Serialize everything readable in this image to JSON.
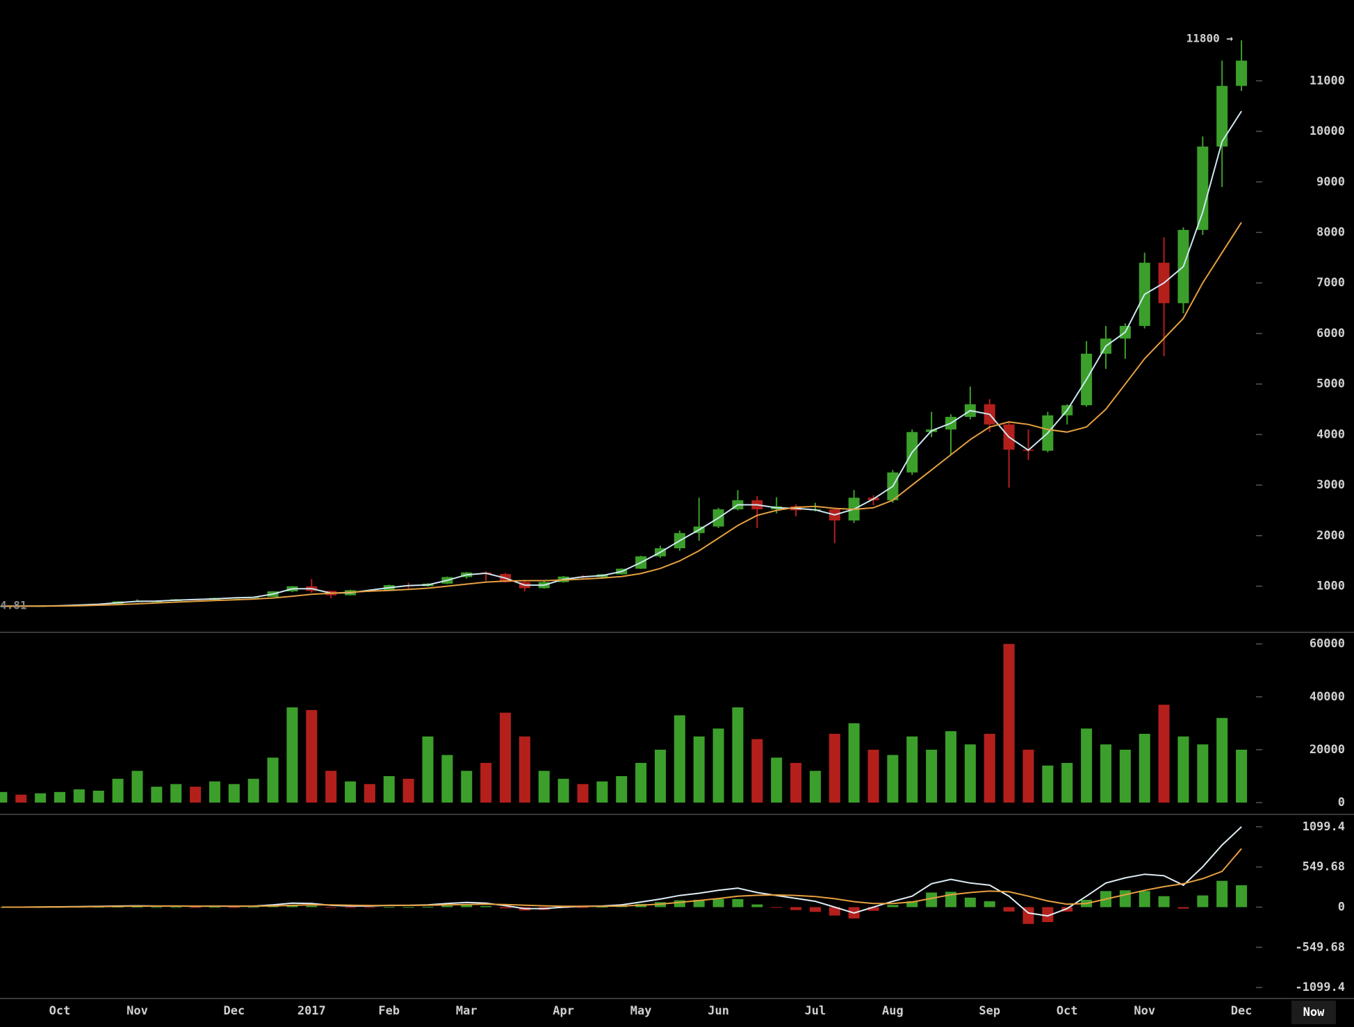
{
  "chart_data": [
    {
      "type": "candlestick",
      "categories": [
        null,
        null,
        null,
        "Oct",
        null,
        null,
        null,
        "Nov",
        null,
        null,
        null,
        null,
        "Dec",
        null,
        null,
        null,
        "2017",
        null,
        null,
        null,
        "Feb",
        null,
        null,
        null,
        "Mar",
        null,
        null,
        null,
        null,
        "Apr",
        null,
        null,
        null,
        "May",
        null,
        null,
        null,
        "Jun",
        null,
        null,
        null,
        null,
        "Jul",
        null,
        null,
        null,
        "Aug",
        null,
        null,
        null,
        null,
        "Sep",
        null,
        null,
        null,
        "Oct",
        null,
        null,
        null,
        "Nov",
        null,
        null,
        null,
        null,
        "Dec"
      ],
      "open": [
        607,
        609,
        602,
        610,
        617,
        638,
        647,
        698,
        703,
        705,
        740,
        731,
        766,
        772,
        788,
        897,
        998,
        905,
        820,
        920,
        918,
        1020,
        1000,
        1050,
        1180,
        1270,
        1240,
        1080,
        960,
        1080,
        1190,
        1180,
        1235,
        1345,
        1590,
        1750,
        2050,
        2180,
        2520,
        2700,
        2520,
        2580,
        2500,
        2520,
        2300,
        2750,
        2700,
        3250,
        4050,
        4100,
        4350,
        4600,
        4200,
        3700,
        3680,
        4380,
        4580,
        5600,
        5900,
        6150,
        7400,
        6600,
        8050,
        9700,
        10900
      ],
      "high": [
        612,
        611,
        612,
        620,
        642,
        650,
        700,
        740,
        723,
        745,
        745,
        770,
        778,
        790,
        900,
        1000,
        1140,
        910,
        930,
        925,
        1030,
        1070,
        1060,
        1190,
        1280,
        1290,
        1260,
        1100,
        1100,
        1200,
        1220,
        1240,
        1350,
        1600,
        1800,
        2100,
        2750,
        2550,
        2900,
        2780,
        2760,
        2620,
        2650,
        2540,
        2900,
        2800,
        3300,
        4100,
        4450,
        4400,
        4950,
        4700,
        4250,
        4100,
        4450,
        4600,
        5850,
        6150,
        6200,
        7600,
        7900,
        8100,
        9900,
        11400,
        11800
      ],
      "low": [
        600,
        595,
        600,
        605,
        615,
        625,
        645,
        690,
        700,
        700,
        725,
        728,
        755,
        766,
        786,
        880,
        870,
        760,
        815,
        880,
        915,
        950,
        990,
        1040,
        1150,
        1100,
        1070,
        900,
        950,
        1070,
        1140,
        1170,
        1230,
        1340,
        1560,
        1700,
        1900,
        2150,
        2500,
        2150,
        2440,
        2380,
        2480,
        1850,
        2250,
        2600,
        2650,
        3200,
        3950,
        3600,
        4300,
        4050,
        2950,
        3500,
        3650,
        4200,
        4550,
        5300,
        5500,
        6100,
        5550,
        6400,
        7950,
        8900,
        10800
      ],
      "close": [
        609,
        602,
        610,
        617,
        638,
        647,
        698,
        703,
        705,
        740,
        731,
        766,
        772,
        788,
        897,
        998,
        905,
        820,
        920,
        918,
        1020,
        1000,
        1050,
        1180,
        1270,
        1240,
        1080,
        960,
        1080,
        1190,
        1180,
        1235,
        1345,
        1590,
        1750,
        2050,
        2180,
        2520,
        2700,
        2520,
        2580,
        2500,
        2520,
        2300,
        2750,
        2700,
        3250,
        4050,
        4100,
        4350,
        4600,
        4200,
        3700,
        3680,
        4380,
        4580,
        5600,
        5900,
        6150,
        7400,
        6600,
        8050,
        9700,
        10900,
        11400
      ],
      "up_color": "#3c9f2b",
      "down_color": "#b3201c",
      "series": [
        {
          "color": "#cfe8f2",
          "values": [
            605,
            606,
            606,
            613,
            627,
            642,
            672,
            700,
            704,
            722,
            735,
            748,
            769,
            780,
            842,
            947,
            951,
            862,
            870,
            919,
            969,
            1010,
            1025,
            1115,
            1225,
            1255,
            1160,
            1020,
            1020,
            1135,
            1185,
            1208,
            1290,
            1468,
            1670,
            1900,
            2115,
            2350,
            2610,
            2610,
            2550,
            2540,
            2510,
            2410,
            2525,
            2725,
            2975,
            3650,
            4075,
            4225,
            4475,
            4400,
            3950,
            3690,
            4030,
            4480,
            5090,
            5750,
            6025,
            6775,
            7000,
            7325,
            8400,
            9800,
            10400
          ]
        },
        {
          "color": "#e6a040",
          "values": [
            600,
            603,
            605,
            608,
            613,
            622,
            635,
            650,
            668,
            685,
            700,
            715,
            730,
            745,
            765,
            800,
            840,
            860,
            880,
            900,
            915,
            935,
            960,
            1000,
            1040,
            1080,
            1100,
            1110,
            1110,
            1120,
            1140,
            1160,
            1190,
            1250,
            1350,
            1500,
            1700,
            1950,
            2200,
            2400,
            2500,
            2560,
            2580,
            2540,
            2520,
            2550,
            2700,
            3000,
            3300,
            3600,
            3900,
            4150,
            4250,
            4200,
            4100,
            4050,
            4150,
            4500,
            5000,
            5500,
            5900,
            6300,
            7000,
            7600,
            8200
          ]
        }
      ],
      "ylim": [
        100,
        12600
      ],
      "yticks": [
        1000,
        2000,
        3000,
        4000,
        5000,
        6000,
        7000,
        8000,
        9000,
        10000,
        11000
      ],
      "annotations": [
        "11800 →",
        "4.81"
      ],
      "now_label": "Now"
    },
    {
      "type": "bar",
      "values": [
        4000,
        3000,
        3500,
        4000,
        5000,
        4500,
        9000,
        12000,
        6000,
        7000,
        6000,
        8000,
        7000,
        9000,
        17000,
        36000,
        35000,
        12000,
        8000,
        7000,
        10000,
        9000,
        25000,
        18000,
        12000,
        15000,
        34000,
        25000,
        12000,
        9000,
        7000,
        8000,
        10000,
        15000,
        20000,
        33000,
        25000,
        28000,
        36000,
        24000,
        17000,
        15000,
        12000,
        26000,
        30000,
        20000,
        18000,
        25000,
        20000,
        27000,
        22000,
        26000,
        60000,
        20000,
        14000,
        15000,
        28000,
        22000,
        20000,
        26000,
        37000,
        25000,
        22000,
        32000,
        20000
      ],
      "ylim": [
        -4200,
        63600
      ],
      "yticks": [
        0,
        20000,
        40000,
        60000
      ]
    },
    {
      "type": "macd",
      "series": [
        {
          "color": "#dfeef6",
          "values": [
            0,
            0,
            2,
            5,
            8,
            10,
            15,
            18,
            15,
            15,
            12,
            14,
            12,
            14,
            30,
            55,
            50,
            25,
            15,
            15,
            25,
            25,
            30,
            50,
            65,
            55,
            20,
            -20,
            -20,
            0,
            10,
            15,
            30,
            70,
            110,
            160,
            190,
            230,
            260,
            200,
            160,
            120,
            80,
            0,
            -80,
            0,
            80,
            150,
            320,
            380,
            330,
            300,
            150,
            -80,
            -120,
            -20,
            150,
            330,
            400,
            450,
            430,
            300,
            550,
            850,
            1099
          ]
        },
        {
          "color": "#e6a040",
          "values": [
            0,
            0,
            1,
            3,
            5,
            7,
            10,
            13,
            14,
            14,
            13,
            13,
            13,
            13,
            17,
            25,
            32,
            30,
            26,
            23,
            23,
            24,
            26,
            30,
            36,
            40,
            36,
            26,
            18,
            12,
            12,
            12,
            15,
            26,
            42,
            66,
            90,
            118,
            150,
            163,
            166,
            160,
            145,
            115,
            75,
            50,
            50,
            70,
            120,
            170,
            200,
            220,
            210,
            150,
            85,
            40,
            50,
            110,
            170,
            230,
            280,
            320,
            390,
            490,
            800
          ]
        }
      ],
      "histogram": {
        "up_color": "#3c9f2b",
        "down_color": "#b3201c",
        "values": [
          0,
          0,
          1,
          2,
          3,
          3,
          5,
          5,
          1,
          1,
          -1,
          1,
          -1,
          1,
          13,
          30,
          18,
          -5,
          -11,
          -8,
          2,
          1,
          4,
          20,
          29,
          15,
          -16,
          -46,
          -38,
          -12,
          -2,
          3,
          15,
          44,
          68,
          94,
          100,
          112,
          110,
          37,
          -6,
          -40,
          -65,
          -115,
          -155,
          -50,
          30,
          80,
          200,
          210,
          130,
          80,
          -60,
          -230,
          -205,
          -60,
          100,
          220,
          230,
          220,
          150,
          -20,
          160,
          360,
          299
        ]
      },
      "ylim": [
        -1250,
        1250
      ],
      "yticks": [
        -1099.4,
        -549.68,
        0,
        549.68,
        1099.4
      ]
    }
  ]
}
